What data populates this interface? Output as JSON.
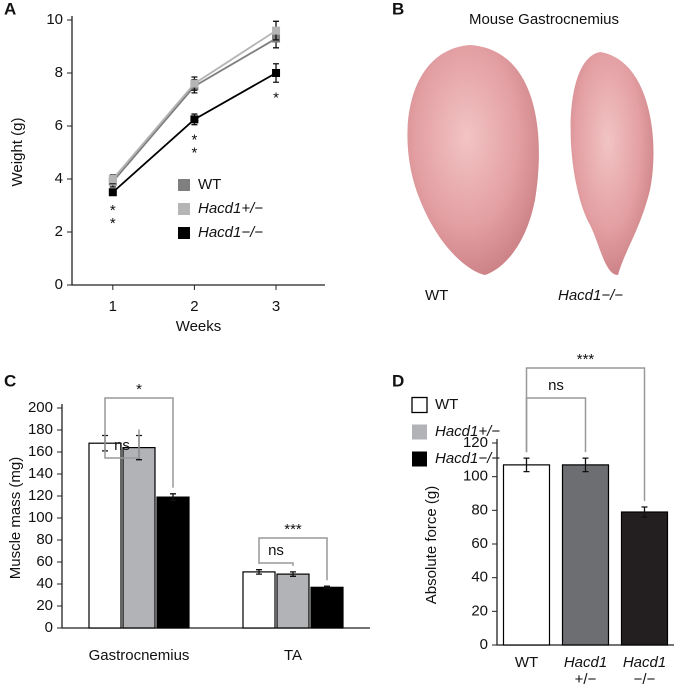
{
  "panel_labels": [
    "A",
    "B",
    "C",
    "D"
  ],
  "photo": {
    "title": "Mouse Gastrocnemius",
    "labels": [
      "WT",
      "Hacd1−/−"
    ]
  },
  "chart_data": [
    {
      "type": "line",
      "xlabel": "Weeks",
      "ylabel": "Weight (g)",
      "x": [
        1,
        2,
        3
      ],
      "xlim": [
        0.5,
        3.6
      ],
      "xticks": [
        1,
        2,
        3
      ],
      "ylim": [
        0,
        10
      ],
      "yticks": [
        0,
        2,
        4,
        6,
        8,
        10
      ],
      "series": [
        {
          "name": "WT",
          "color": "#7f7f7f",
          "values": [
            3.9,
            7.5,
            9.3
          ],
          "errors": [
            0.2,
            0.25,
            0.35
          ]
        },
        {
          "name": "Hacd1+/−",
          "color": "#b5b5b5",
          "values": [
            4.0,
            7.6,
            9.6
          ],
          "errors": [
            0.15,
            0.25,
            0.35
          ]
        },
        {
          "name": "Hacd1−/−",
          "color": "#000000",
          "values": [
            3.5,
            6.25,
            8.0
          ],
          "errors": [
            0.1,
            0.2,
            0.35
          ]
        }
      ],
      "annotations": [
        "**",
        "**",
        "*"
      ]
    },
    {
      "type": "bar",
      "ylabel": "Muscle mass (mg)",
      "categories": [
        "Gastrocnemius",
        "TA"
      ],
      "ylim": [
        0,
        200
      ],
      "yticks": [
        0,
        20,
        40,
        60,
        80,
        100,
        120,
        140,
        160,
        180,
        200
      ],
      "series": [
        {
          "name": "WT",
          "color": "#ffffff",
          "values": [
            168,
            51
          ],
          "errors": [
            7,
            2
          ]
        },
        {
          "name": "Hacd1+/−",
          "color": "#b1b3b6",
          "values": [
            164,
            49
          ],
          "errors": [
            11,
            2
          ]
        },
        {
          "name": "Hacd1−/−",
          "color": "#000000",
          "values": [
            119,
            37
          ],
          "errors": [
            3,
            1
          ]
        }
      ],
      "annotations": [
        "ns",
        "*",
        "ns",
        "***"
      ]
    },
    {
      "type": "bar",
      "ylabel": "Absolute force (g)",
      "categories": [
        [
          "WT"
        ],
        [
          "Hacd1",
          "+/−"
        ],
        [
          "Hacd1",
          "−/−"
        ]
      ],
      "ylim": [
        0,
        120
      ],
      "yticks": [
        0,
        20,
        40,
        60,
        80,
        100,
        120
      ],
      "values": [
        107,
        107,
        79
      ],
      "errors": [
        4,
        4,
        3
      ],
      "colors": [
        "#ffffff",
        "#6d6e71",
        "#231f20"
      ],
      "annotations": [
        "ns",
        "***"
      ]
    }
  ]
}
